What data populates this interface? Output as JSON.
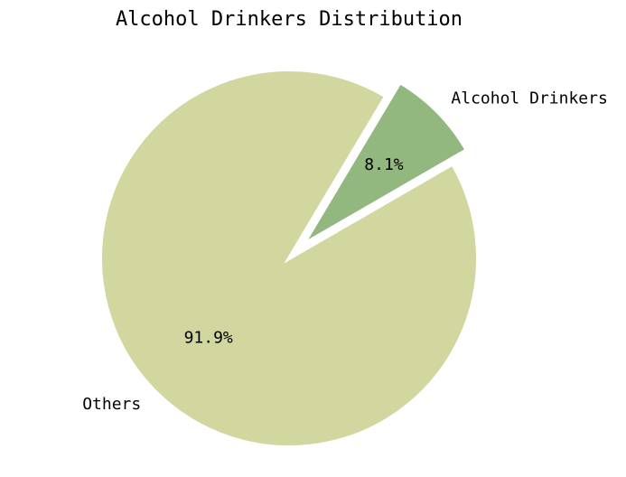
{
  "chart_data": {
    "type": "pie",
    "title": "Alcohol Drinkers Distribution",
    "slices": [
      {
        "label": "Alcohol Drinkers",
        "value": 8.1,
        "pct_label": "8.1%",
        "color": "#93b87f",
        "exploded": true
      },
      {
        "label": "Others",
        "value": 91.9,
        "pct_label": "91.9%",
        "color": "#d2d69f",
        "exploded": false
      }
    ],
    "start_angle_deg": 30,
    "direction": "counterclockwise",
    "legend": "none"
  }
}
